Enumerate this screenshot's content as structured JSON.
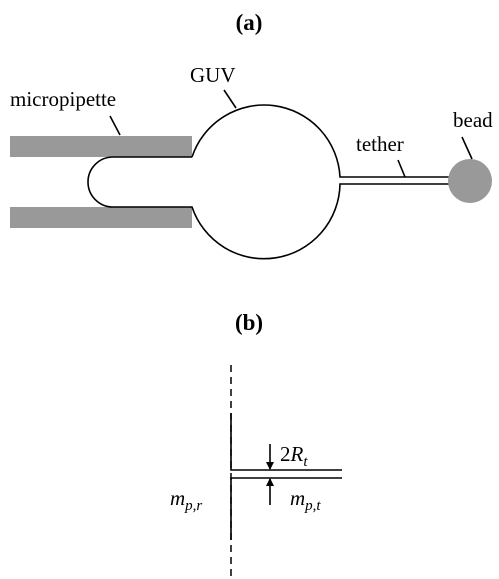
{
  "panel_a": {
    "title": "(a)",
    "labels": {
      "micropipette": "micropipette",
      "guv": "GUV",
      "tether": "tether",
      "bead": "bead"
    }
  },
  "panel_b": {
    "title": "(b)",
    "width_label": {
      "prefix": "2",
      "symbol": "R",
      "subscript": "t"
    },
    "left_label": {
      "symbol": "m",
      "subscript": "p,r"
    },
    "right_label": {
      "symbol": "m",
      "subscript": "p,t"
    }
  }
}
